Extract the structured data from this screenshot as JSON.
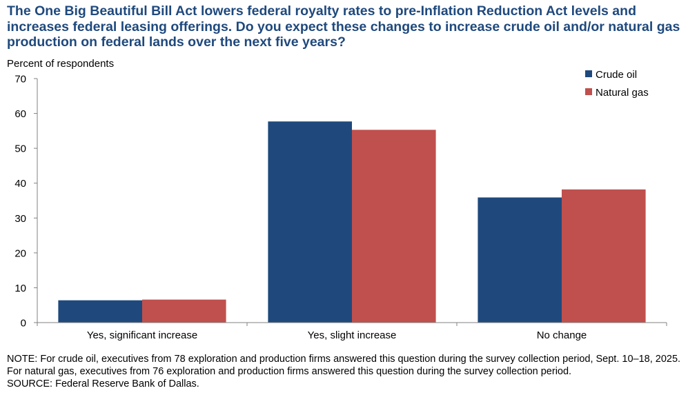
{
  "chart_data": {
    "type": "bar",
    "title": "The One Big Beautiful Bill Act lowers federal royalty rates to pre-Inflation Reduction Act levels and increases federal leasing offerings. Do you expect these changes to increase crude oil and/or natural gas production on federal lands over the next five years?",
    "ylabel": "Percent of respondents",
    "xlabel": "",
    "ylim": [
      0,
      70
    ],
    "yticks": [
      0,
      10,
      20,
      30,
      40,
      50,
      60,
      70
    ],
    "categories": [
      "Yes, significant increase",
      "Yes, slight increase",
      "No change"
    ],
    "series": [
      {
        "name": "Crude oil",
        "color": "#1f497d",
        "values": [
          6.4,
          57.7,
          35.9
        ]
      },
      {
        "name": "Natural gas",
        "color": "#c0504d",
        "values": [
          6.6,
          55.3,
          38.2
        ]
      }
    ],
    "grid": false,
    "legend_position": "top-right"
  },
  "footnote": {
    "note": "NOTE: For crude oil, executives from 78 exploration and production firms answered this question during the survey collection period, Sept. 10–18, 2025. For natural gas, executives from 76 exploration and production firms answered this question during the survey collection period.",
    "source": "SOURCE: Federal Reserve Bank of Dallas."
  }
}
